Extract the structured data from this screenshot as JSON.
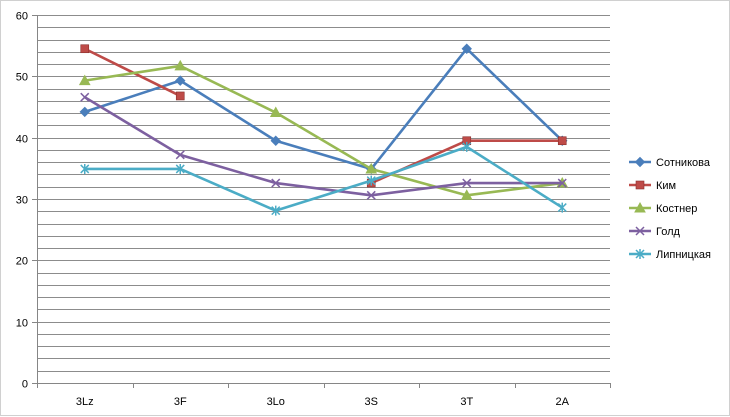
{
  "chart_data": {
    "type": "line",
    "title": "",
    "xlabel": "",
    "ylabel": "",
    "categories": [
      "3Lz",
      "3F",
      "3Lo",
      "3S",
      "3T",
      "2A"
    ],
    "ylim": [
      0,
      60
    ],
    "y_major_step": 10,
    "y_minor_step": 2,
    "y_ticks": [
      "0",
      "10",
      "20",
      "30",
      "40",
      "50",
      "60"
    ],
    "grid": true,
    "legend_position": "right",
    "series": [
      {
        "name": "Сотникова",
        "color": "#4A7EBB",
        "marker": "diamond",
        "values": [
          44.2,
          49.3,
          39.5,
          34.9,
          54.5,
          39.5
        ]
      },
      {
        "name": "Ким",
        "color": "#BE4B48",
        "marker": "square",
        "values": [
          54.5,
          46.8,
          null,
          32.6,
          39.5,
          39.5
        ]
      },
      {
        "name": "Костнер",
        "color": "#98B954",
        "marker": "triangle",
        "values": [
          49.3,
          51.7,
          44.1,
          34.9,
          30.6,
          32.6
        ]
      },
      {
        "name": "Голд",
        "color": "#7D60A0",
        "marker": "x",
        "values": [
          46.6,
          37.2,
          32.6,
          30.6,
          32.6,
          32.6
        ]
      },
      {
        "name": "Липницкая",
        "color": "#4BACC6",
        "marker": "star",
        "values": [
          34.9,
          34.9,
          28.1,
          33.0,
          38.5,
          28.6
        ]
      }
    ]
  }
}
